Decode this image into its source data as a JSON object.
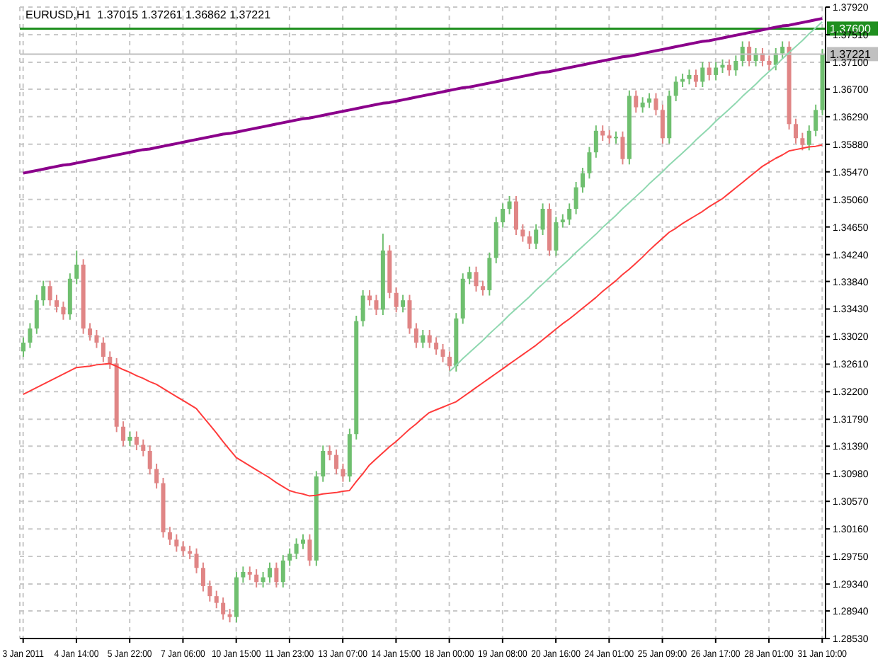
{
  "chart_data": {
    "type": "candlestick",
    "title": "EURUSD,H1  1.37015 1.37261 1.36862 1.37221",
    "grid": true,
    "categories": [
      "3 Jan 2011",
      null,
      null,
      null,
      null,
      null,
      null,
      null,
      "4 Jan 14:00",
      null,
      null,
      null,
      null,
      null,
      null,
      null,
      "5 Jan 22:00",
      null,
      null,
      null,
      null,
      null,
      null,
      null,
      "7 Jan 06:00",
      null,
      null,
      null,
      null,
      null,
      null,
      null,
      "10 Jan 15:00",
      null,
      null,
      null,
      null,
      null,
      null,
      null,
      "11 Jan 23:00",
      null,
      null,
      null,
      null,
      null,
      null,
      null,
      "13 Jan 07:00",
      null,
      null,
      null,
      null,
      null,
      null,
      null,
      "14 Jan 15:00",
      null,
      null,
      null,
      null,
      null,
      null,
      null,
      "18 Jan 00:00",
      null,
      null,
      null,
      null,
      null,
      null,
      null,
      "19 Jan 08:00",
      null,
      null,
      null,
      null,
      null,
      null,
      null,
      "20 Jan 16:00",
      null,
      null,
      null,
      null,
      null,
      null,
      null,
      "24 Jan 01:00",
      null,
      null,
      null,
      null,
      null,
      null,
      null,
      "25 Jan 09:00",
      null,
      null,
      null,
      null,
      null,
      null,
      null,
      "26 Jan 17:00",
      null,
      null,
      null,
      null,
      null,
      null,
      null,
      "28 Jan 01:00",
      null,
      null,
      null,
      null,
      null,
      null,
      null,
      "31 Jan 10:00"
    ],
    "ylim": [
      1.2853,
      1.3792
    ],
    "yticks": [
      {
        "value": 1.3792,
        "label": "1.37920"
      },
      {
        "value": 1.3751,
        "label": "1.37510"
      },
      {
        "value": 1.371,
        "label": "1.37100"
      },
      {
        "value": 1.367,
        "label": "1.36700"
      },
      {
        "value": 1.3629,
        "label": "1.36290"
      },
      {
        "value": 1.3588,
        "label": "1.35880"
      },
      {
        "value": 1.3547,
        "label": "1.35470"
      },
      {
        "value": 1.3506,
        "label": "1.35060"
      },
      {
        "value": 1.3465,
        "label": "1.34650"
      },
      {
        "value": 1.3424,
        "label": "1.34240"
      },
      {
        "value": 1.3384,
        "label": "1.33840"
      },
      {
        "value": 1.3343,
        "label": "1.33430"
      },
      {
        "value": 1.3302,
        "label": "1.33020"
      },
      {
        "value": 1.3261,
        "label": "1.32610"
      },
      {
        "value": 1.322,
        "label": "1.32200"
      },
      {
        "value": 1.3179,
        "label": "1.31790"
      },
      {
        "value": 1.3139,
        "label": "1.31390"
      },
      {
        "value": 1.3098,
        "label": "1.30980"
      },
      {
        "value": 1.3057,
        "label": "1.30570"
      },
      {
        "value": 1.3016,
        "label": "1.30160"
      },
      {
        "value": 1.2975,
        "label": "1.29750"
      },
      {
        "value": 1.2934,
        "label": "1.29340"
      },
      {
        "value": 1.2894,
        "label": "1.28940"
      },
      {
        "value": 1.2853,
        "label": "1.28530"
      }
    ],
    "ref_lines": [
      {
        "axis": "y",
        "value": 1.376,
        "label": "1.37600",
        "color": "#1f8f1f"
      },
      {
        "axis": "y",
        "value": 1.37221,
        "label": "1.37221",
        "color": "#c0c0c0"
      }
    ],
    "series": [
      {
        "ohlc": [
          [
            1.328,
            1.3301,
            1.3272,
            1.3293
          ],
          [
            1.3293,
            1.3322,
            1.3285,
            1.3314
          ],
          [
            1.3314,
            1.3364,
            1.3306,
            1.3356
          ],
          [
            1.3356,
            1.3385,
            1.3348,
            1.3377
          ],
          [
            1.3377,
            1.3385,
            1.3348,
            1.3356
          ],
          [
            1.3356,
            1.3364,
            1.3338,
            1.3346
          ],
          [
            1.3346,
            1.3354,
            1.3327,
            1.3335
          ],
          [
            1.3335,
            1.3396,
            1.3327,
            1.3388
          ],
          [
            1.3388,
            1.343,
            1.338,
            1.3409
          ],
          [
            1.3409,
            1.3417,
            1.3306,
            1.3314
          ],
          [
            1.3314,
            1.3322,
            1.3296,
            1.3304
          ],
          [
            1.3304,
            1.3312,
            1.3285,
            1.3293
          ],
          [
            1.3293,
            1.3301,
            1.3264,
            1.3272
          ],
          [
            1.3272,
            1.328,
            1.3254,
            1.3262
          ],
          [
            1.3262,
            1.327,
            1.316,
            1.3168
          ],
          [
            1.3168,
            1.3176,
            1.3139,
            1.3147
          ],
          [
            1.3147,
            1.3161,
            1.3139,
            1.3153
          ],
          [
            1.3153,
            1.3161,
            1.3133,
            1.3141
          ],
          [
            1.3141,
            1.3149,
            1.3124,
            1.3132
          ],
          [
            1.3132,
            1.314,
            1.3097,
            1.3105
          ],
          [
            1.3105,
            1.3113,
            1.3076,
            1.3084
          ],
          [
            1.3084,
            1.3092,
            1.3003,
            1.3011
          ],
          [
            1.3011,
            1.3019,
            1.2992,
            1.3
          ],
          [
            1.3,
            1.3008,
            1.2982,
            1.299
          ],
          [
            1.299,
            1.2998,
            1.2975,
            1.2983
          ],
          [
            1.2983,
            1.2991,
            1.2971,
            1.2979
          ],
          [
            1.2979,
            1.2987,
            1.295,
            1.2958
          ],
          [
            1.2958,
            1.2966,
            1.2923,
            1.2931
          ],
          [
            1.2931,
            1.2939,
            1.2908,
            1.2916
          ],
          [
            1.2916,
            1.2924,
            1.2898,
            1.2906
          ],
          [
            1.2906,
            1.2914,
            1.2881,
            1.2889
          ],
          [
            1.2889,
            1.2897,
            1.2877,
            1.2885
          ],
          [
            1.2885,
            1.2952,
            1.2877,
            1.2944
          ],
          [
            1.2944,
            1.296,
            1.2936,
            1.2952
          ],
          [
            1.2952,
            1.296,
            1.294,
            1.2948
          ],
          [
            1.2948,
            1.2956,
            1.2929,
            1.2937
          ],
          [
            1.2937,
            1.2952,
            1.2929,
            1.2944
          ],
          [
            1.2944,
            1.2966,
            1.2936,
            1.2958
          ],
          [
            1.2958,
            1.2966,
            1.2929,
            1.2937
          ],
          [
            1.2937,
            1.2977,
            1.2929,
            1.2969
          ],
          [
            1.2969,
            1.2987,
            1.2961,
            1.2979
          ],
          [
            1.2979,
            1.3002,
            1.2971,
            1.2994
          ],
          [
            1.2994,
            1.3008,
            1.2986,
            1.3
          ],
          [
            1.3,
            1.3008,
            1.2961,
            1.2969
          ],
          [
            1.2969,
            1.3102,
            1.2961,
            1.3094
          ],
          [
            1.3094,
            1.314,
            1.3086,
            1.3132
          ],
          [
            1.3132,
            1.314,
            1.3118,
            1.3126
          ],
          [
            1.3126,
            1.3134,
            1.3097,
            1.3105
          ],
          [
            1.3105,
            1.3113,
            1.3086,
            1.3094
          ],
          [
            1.3094,
            1.3165,
            1.3086,
            1.3157
          ],
          [
            1.3157,
            1.3333,
            1.3149,
            1.3325
          ],
          [
            1.3325,
            1.3371,
            1.3317,
            1.3363
          ],
          [
            1.3363,
            1.3371,
            1.3348,
            1.3356
          ],
          [
            1.3356,
            1.3364,
            1.3334,
            1.3342
          ],
          [
            1.3342,
            1.3455,
            1.3334,
            1.343
          ],
          [
            1.343,
            1.3438,
            1.3359,
            1.3367
          ],
          [
            1.3367,
            1.3375,
            1.3338,
            1.3346
          ],
          [
            1.3346,
            1.3364,
            1.3338,
            1.3356
          ],
          [
            1.3356,
            1.3364,
            1.3306,
            1.3314
          ],
          [
            1.3314,
            1.3322,
            1.3285,
            1.3293
          ],
          [
            1.3293,
            1.3312,
            1.3285,
            1.3304
          ],
          [
            1.3304,
            1.3312,
            1.3285,
            1.3293
          ],
          [
            1.3293,
            1.3301,
            1.3275,
            1.3283
          ],
          [
            1.3283,
            1.3291,
            1.3264,
            1.3272
          ],
          [
            1.3272,
            1.328,
            1.325,
            1.3258
          ],
          [
            1.3258,
            1.3337,
            1.325,
            1.3329
          ],
          [
            1.3329,
            1.3396,
            1.3321,
            1.3388
          ],
          [
            1.3388,
            1.3406,
            1.338,
            1.3398
          ],
          [
            1.3398,
            1.3406,
            1.3369,
            1.3377
          ],
          [
            1.3377,
            1.3385,
            1.3363,
            1.3371
          ],
          [
            1.3371,
            1.3427,
            1.3363,
            1.3419
          ],
          [
            1.3419,
            1.348,
            1.3411,
            1.3472
          ],
          [
            1.3472,
            1.35,
            1.3464,
            1.3492
          ],
          [
            1.3492,
            1.3511,
            1.3484,
            1.3503
          ],
          [
            1.3503,
            1.3511,
            1.3453,
            1.3461
          ],
          [
            1.3461,
            1.3469,
            1.3443,
            1.3451
          ],
          [
            1.3451,
            1.3459,
            1.3432,
            1.344
          ],
          [
            1.344,
            1.3469,
            1.3432,
            1.3461
          ],
          [
            1.3461,
            1.35,
            1.3453,
            1.3492
          ],
          [
            1.3492,
            1.35,
            1.3422,
            1.343
          ],
          [
            1.343,
            1.348,
            1.3422,
            1.3472
          ],
          [
            1.3472,
            1.3484,
            1.3464,
            1.3476
          ],
          [
            1.3476,
            1.35,
            1.3468,
            1.3492
          ],
          [
            1.3492,
            1.3532,
            1.3484,
            1.3524
          ],
          [
            1.3524,
            1.3553,
            1.3516,
            1.3545
          ],
          [
            1.3545,
            1.3584,
            1.3537,
            1.3576
          ],
          [
            1.3576,
            1.3616,
            1.3568,
            1.3608
          ],
          [
            1.3608,
            1.3616,
            1.3593,
            1.3601
          ],
          [
            1.3601,
            1.3609,
            1.3589,
            1.3597
          ],
          [
            1.3597,
            1.3607,
            1.3589,
            1.3599
          ],
          [
            1.3599,
            1.3607,
            1.3558,
            1.3566
          ],
          [
            1.3566,
            1.3668,
            1.3558,
            1.366
          ],
          [
            1.366,
            1.3668,
            1.3635,
            1.3643
          ],
          [
            1.3643,
            1.3658,
            1.3635,
            1.365
          ],
          [
            1.365,
            1.3664,
            1.3642,
            1.3656
          ],
          [
            1.3656,
            1.3664,
            1.3631,
            1.3639
          ],
          [
            1.3639,
            1.3647,
            1.3589,
            1.3597
          ],
          [
            1.3597,
            1.3668,
            1.3589,
            1.366
          ],
          [
            1.366,
            1.3689,
            1.3652,
            1.3681
          ],
          [
            1.3681,
            1.3693,
            1.3673,
            1.3685
          ],
          [
            1.3685,
            1.3699,
            1.3677,
            1.3691
          ],
          [
            1.3691,
            1.3699,
            1.3673,
            1.3681
          ],
          [
            1.3681,
            1.371,
            1.3673,
            1.3702
          ],
          [
            1.3702,
            1.371,
            1.3683,
            1.3691
          ],
          [
            1.3691,
            1.371,
            1.3683,
            1.3702
          ],
          [
            1.3702,
            1.3714,
            1.3694,
            1.3706
          ],
          [
            1.3706,
            1.3714,
            1.369,
            1.3698
          ],
          [
            1.3698,
            1.372,
            1.369,
            1.3712
          ],
          [
            1.3712,
            1.3741,
            1.3704,
            1.3733
          ],
          [
            1.3733,
            1.3741,
            1.3704,
            1.3712
          ],
          [
            1.3712,
            1.3731,
            1.3704,
            1.3723
          ],
          [
            1.3723,
            1.3731,
            1.3704,
            1.3712
          ],
          [
            1.3712,
            1.372,
            1.3698,
            1.3706
          ],
          [
            1.3706,
            1.3731,
            1.3698,
            1.3723
          ],
          [
            1.3723,
            1.3741,
            1.3715,
            1.3733
          ],
          [
            1.3733,
            1.3741,
            1.361,
            1.3618
          ],
          [
            1.3618,
            1.3626,
            1.3589,
            1.3597
          ],
          [
            1.3597,
            1.3605,
            1.3579,
            1.3587
          ],
          [
            1.3587,
            1.3616,
            1.3579,
            1.3608
          ],
          [
            1.3608,
            1.3647,
            1.36,
            1.3639
          ],
          [
            1.3639,
            1.373,
            1.3631,
            1.3722
          ]
        ],
        "colors": [
          "#6fbf6f",
          "#6fbf6f",
          "#6fbf6f",
          "#6fbf6f",
          "#e08585",
          "#e08585",
          "#e08585",
          "#6fbf6f",
          "#6fbf6f",
          "#e08585",
          "#e08585",
          "#e08585",
          "#e08585",
          "#e08585",
          "#e08585",
          "#e08585",
          "#6fbf6f",
          "#e08585",
          "#e08585",
          "#e08585",
          "#e08585",
          "#e08585",
          "#e08585",
          "#e08585",
          "#e08585",
          "#e08585",
          "#e08585",
          "#e08585",
          "#e08585",
          "#e08585",
          "#e08585",
          "#e08585",
          "#6fbf6f",
          "#6fbf6f",
          "#e08585",
          "#e08585",
          "#6fbf6f",
          "#6fbf6f",
          "#e08585",
          "#6fbf6f",
          "#6fbf6f",
          "#6fbf6f",
          "#6fbf6f",
          "#e08585",
          "#6fbf6f",
          "#6fbf6f",
          "#e08585",
          "#e08585",
          "#e08585",
          "#6fbf6f",
          "#6fbf6f",
          "#6fbf6f",
          "#e08585",
          "#e08585",
          "#6fbf6f",
          "#e08585",
          "#e08585",
          "#6fbf6f",
          "#e08585",
          "#e08585",
          "#6fbf6f",
          "#e08585",
          "#e08585",
          "#e08585",
          "#e08585",
          "#6fbf6f",
          "#6fbf6f",
          "#6fbf6f",
          "#e08585",
          "#e08585",
          "#6fbf6f",
          "#6fbf6f",
          "#6fbf6f",
          "#6fbf6f",
          "#e08585",
          "#e08585",
          "#e08585",
          "#6fbf6f",
          "#6fbf6f",
          "#e08585",
          "#6fbf6f",
          "#6fbf6f",
          "#6fbf6f",
          "#6fbf6f",
          "#6fbf6f",
          "#6fbf6f",
          "#6fbf6f",
          "#e08585",
          "#e08585",
          "#6fbf6f",
          "#e08585",
          "#6fbf6f",
          "#e08585",
          "#6fbf6f",
          "#6fbf6f",
          "#e08585",
          "#e08585",
          "#6fbf6f",
          "#6fbf6f",
          "#6fbf6f",
          "#6fbf6f",
          "#e08585",
          "#6fbf6f",
          "#e08585",
          "#6fbf6f",
          "#6fbf6f",
          "#e08585",
          "#6fbf6f",
          "#6fbf6f",
          "#e08585",
          "#6fbf6f",
          "#e08585",
          "#e08585",
          "#6fbf6f",
          "#6fbf6f",
          "#e08585",
          "#e08585",
          "#e08585",
          "#6fbf6f",
          "#6fbf6f",
          "#6fbf6f"
        ]
      },
      {
        "type": "line",
        "color": "#ff3b3b",
        "values": [
          1.3216,
          1.3221,
          1.3226,
          1.3231,
          1.3236,
          1.3241,
          1.3246,
          1.3251,
          1.3256,
          1.3257,
          1.3258,
          1.326,
          1.3261,
          1.3262,
          1.3258,
          1.3253,
          1.3249,
          1.3244,
          1.324,
          1.3235,
          1.3231,
          1.3225,
          1.3219,
          1.3213,
          1.3207,
          1.3201,
          1.3195,
          1.3183,
          1.3171,
          1.3159,
          1.3146,
          1.3134,
          1.3122,
          1.3116,
          1.311,
          1.3104,
          1.3098,
          1.3092,
          1.3085,
          1.3079,
          1.3073,
          1.307,
          1.3068,
          1.3065,
          1.3066,
          1.3068,
          1.3069,
          1.307,
          1.3072,
          1.3073,
          1.3086,
          1.3098,
          1.3111,
          1.312,
          1.3129,
          1.3138,
          1.3146,
          1.3155,
          1.3164,
          1.3172,
          1.3181,
          1.3189,
          1.3193,
          1.3197,
          1.3201,
          1.3205,
          1.3212,
          1.3219,
          1.3226,
          1.3233,
          1.324,
          1.3247,
          1.3254,
          1.3261,
          1.3268,
          1.3275,
          1.3282,
          1.3289,
          1.3297,
          1.3305,
          1.3313,
          1.3321,
          1.3328,
          1.3336,
          1.3344,
          1.3352,
          1.336,
          1.3369,
          1.3377,
          1.3385,
          1.3394,
          1.3402,
          1.3411,
          1.342,
          1.343,
          1.3439,
          1.3448,
          1.3457,
          1.3463,
          1.347,
          1.3476,
          1.3482,
          1.3488,
          1.3495,
          1.3501,
          1.3507,
          1.3515,
          1.3523,
          1.3531,
          1.3539,
          1.3547,
          1.3555,
          1.3561,
          1.3567,
          1.3572,
          1.3578,
          1.358,
          1.3582,
          1.3584,
          1.3585,
          1.3587
        ]
      },
      {
        "type": "line",
        "color": "#8fd8b0",
        "values": [
          null,
          null,
          null,
          null,
          null,
          null,
          null,
          null,
          null,
          null,
          null,
          null,
          null,
          null,
          null,
          null,
          null,
          null,
          null,
          null,
          null,
          null,
          null,
          null,
          null,
          null,
          null,
          null,
          null,
          null,
          null,
          null,
          null,
          null,
          null,
          null,
          null,
          null,
          null,
          null,
          null,
          null,
          null,
          null,
          null,
          null,
          null,
          null,
          null,
          null,
          null,
          null,
          null,
          null,
          null,
          null,
          null,
          null,
          null,
          null,
          null,
          null,
          null,
          null,
          1.325,
          1.3259,
          1.3269,
          1.3278,
          1.3287,
          1.3296,
          1.3306,
          1.3315,
          1.3324,
          1.3334,
          1.3343,
          1.3352,
          1.3361,
          1.3371,
          1.338,
          1.3389,
          1.3399,
          1.3408,
          1.3417,
          1.3427,
          1.3436,
          1.3445,
          1.3454,
          1.3464,
          1.3473,
          1.3482,
          1.3492,
          1.3501,
          1.351,
          1.3519,
          1.3529,
          1.3538,
          1.3547,
          1.3557,
          1.3566,
          1.3575,
          1.3584,
          1.3594,
          1.3603,
          1.3612,
          1.3622,
          1.3631,
          1.364,
          1.3649,
          1.3659,
          1.3668,
          1.3677,
          1.3687,
          1.3696,
          1.3705,
          1.3715,
          1.3724,
          1.3733,
          1.3742,
          1.3752,
          1.3761,
          1.377
        ]
      },
      {
        "type": "line",
        "color": "#8b008b",
        "values": [
          1.3545,
          1.3547,
          1.3549,
          1.3551,
          1.3553,
          1.3555,
          1.3557,
          1.3558,
          1.356,
          1.3562,
          1.3564,
          1.3566,
          1.3568,
          1.357,
          1.3572,
          1.3574,
          1.3576,
          1.3578,
          1.358,
          1.3581,
          1.3583,
          1.3585,
          1.3587,
          1.3589,
          1.3591,
          1.3593,
          1.3595,
          1.3597,
          1.3599,
          1.3601,
          1.3603,
          1.3604,
          1.3606,
          1.3608,
          1.361,
          1.3612,
          1.3614,
          1.3616,
          1.3618,
          1.362,
          1.3622,
          1.3624,
          1.3626,
          1.3627,
          1.3629,
          1.3631,
          1.3633,
          1.3635,
          1.3637,
          1.3639,
          1.3641,
          1.3643,
          1.3645,
          1.3647,
          1.3649,
          1.365,
          1.3652,
          1.3654,
          1.3656,
          1.3658,
          1.366,
          1.3662,
          1.3664,
          1.3666,
          1.3668,
          1.367,
          1.3672,
          1.3673,
          1.3675,
          1.3677,
          1.3679,
          1.3681,
          1.3683,
          1.3685,
          1.3687,
          1.3689,
          1.3691,
          1.3693,
          1.3695,
          1.3696,
          1.3698,
          1.37,
          1.3702,
          1.3704,
          1.3706,
          1.3708,
          1.371,
          1.3712,
          1.3714,
          1.3716,
          1.3718,
          1.3719,
          1.3721,
          1.3723,
          1.3725,
          1.3727,
          1.3729,
          1.3731,
          1.3733,
          1.3735,
          1.3737,
          1.3739,
          1.3741,
          1.3742,
          1.3744,
          1.3746,
          1.3748,
          1.375,
          1.3752,
          1.3754,
          1.3756,
          1.3758,
          1.376,
          1.3762,
          1.3764,
          1.3765,
          1.3767,
          1.3769,
          1.3771,
          1.3773,
          1.3775
        ]
      }
    ]
  }
}
